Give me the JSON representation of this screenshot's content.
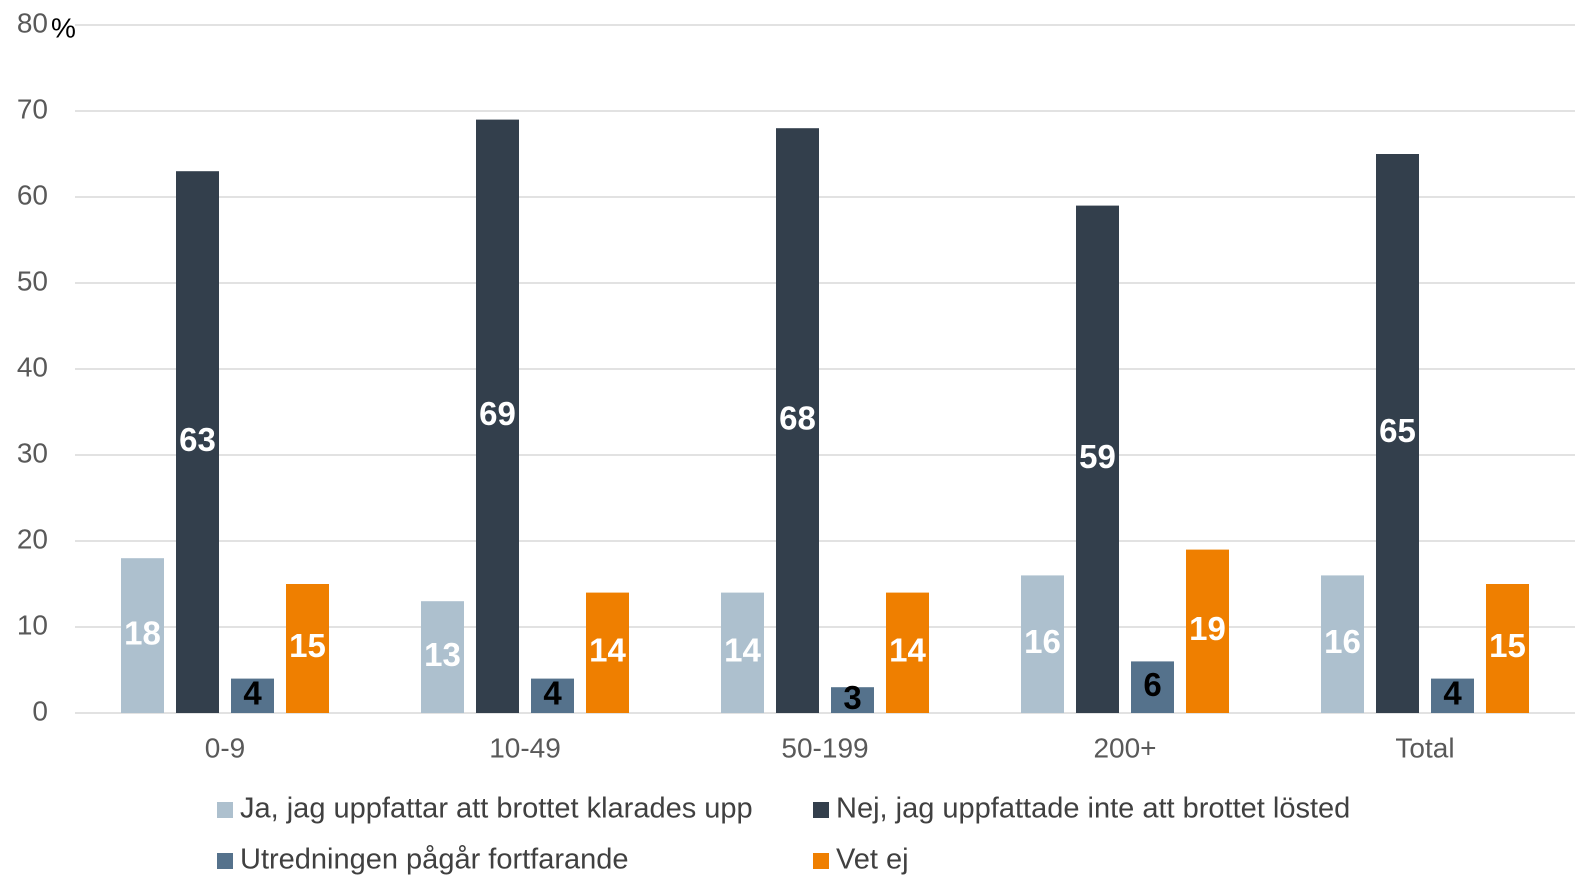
{
  "chart_data": {
    "type": "bar",
    "y_unit": "%",
    "categories": [
      "0-9",
      "10-49",
      "50-199",
      "200+",
      "Total"
    ],
    "series": [
      {
        "name": "Ja, jag uppfattar att brottet klarades upp",
        "color": "#adc0ce",
        "label_color": "#ffffff",
        "values": [
          18,
          13,
          14,
          16,
          16
        ]
      },
      {
        "name": "Nej, jag uppfattade inte att brottet lösted",
        "color": "#333f4c",
        "label_color": "#ffffff",
        "values": [
          63,
          69,
          68,
          59,
          65
        ]
      },
      {
        "name": "Utredningen pågår fortfarande",
        "color": "#55728c",
        "label_color": "#000000",
        "values": [
          4,
          4,
          3,
          6,
          4
        ]
      },
      {
        "name": "Vet ej",
        "color": "#ef7f00",
        "label_color": "#ffffff",
        "values": [
          15,
          14,
          14,
          19,
          15
        ]
      }
    ],
    "ylim": [
      0,
      80
    ],
    "yticks": [
      0,
      10,
      20,
      30,
      40,
      50,
      60,
      70,
      80
    ],
    "grid": true
  }
}
